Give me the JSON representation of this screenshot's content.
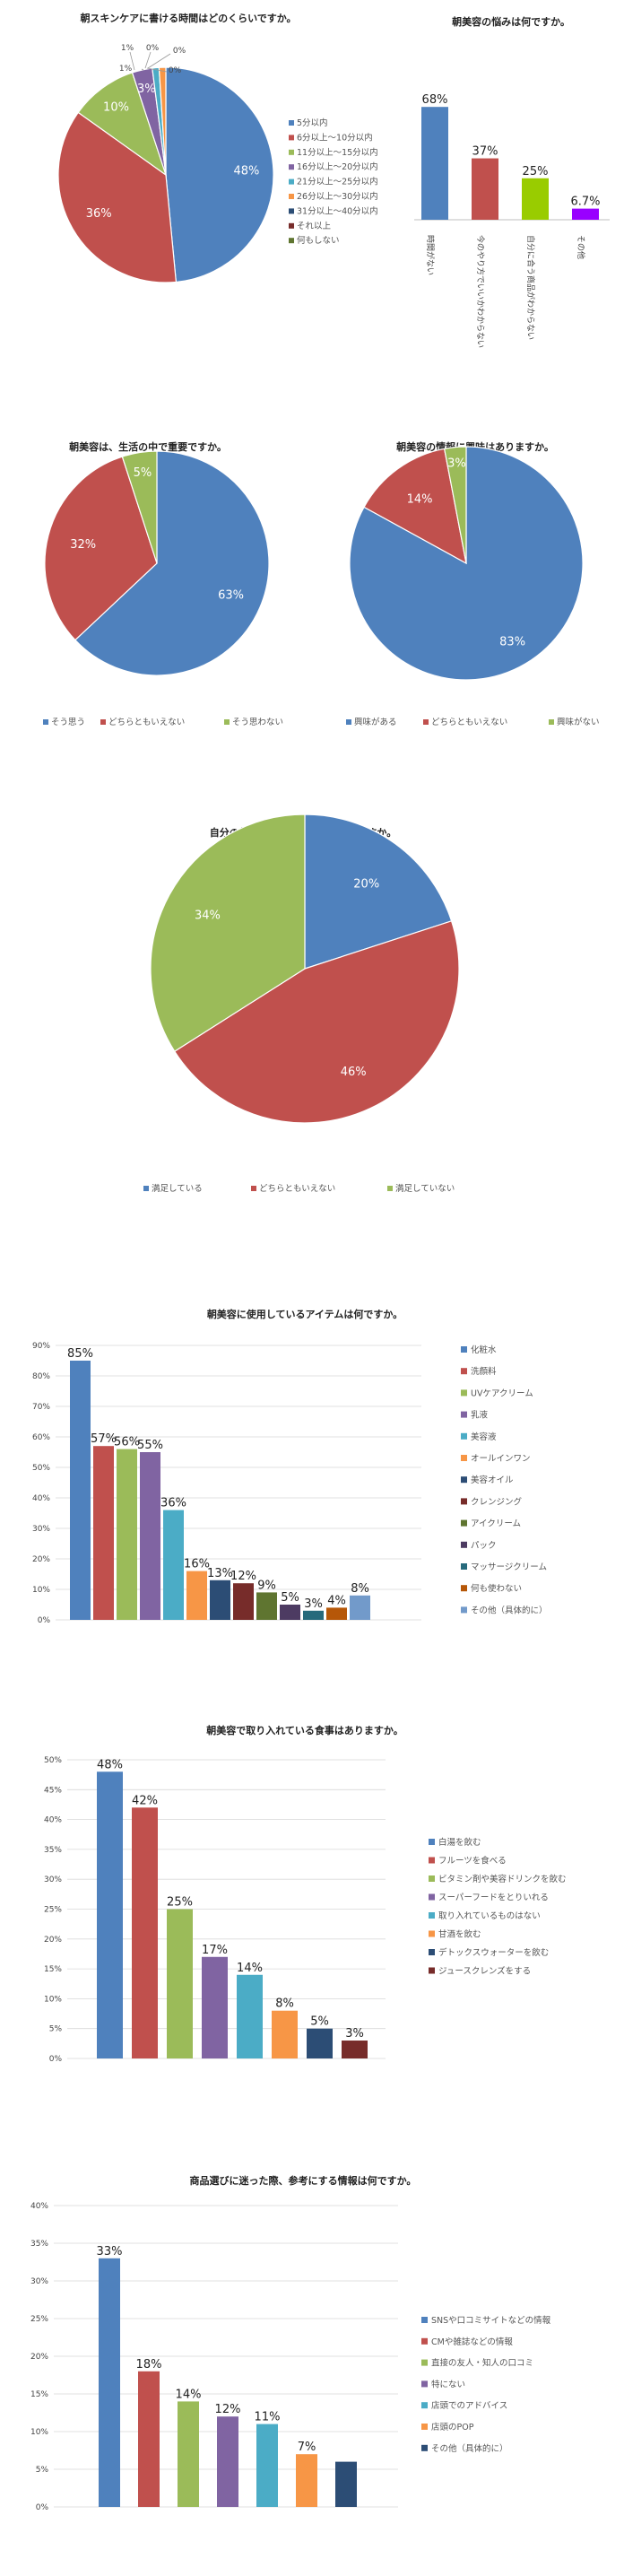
{
  "colors": {
    "blue": "#4f81bd",
    "red": "#c0504d",
    "green": "#9bbb59",
    "purple": "#8064a2",
    "teal": "#4bacc6",
    "orange": "#f79646",
    "navy": "#2c4d75",
    "maroon": "#772c2a",
    "olive": "#5f7530",
    "violet": "#4d3b62",
    "cyan": "#276a7c",
    "brown": "#b65708",
    "steel": "#729aca",
    "lime": "#99cc00",
    "magenta": "#9900ff"
  },
  "chart_data": [
    {
      "type": "pie",
      "title": "朝スキンケアに書ける時間はどのくらいですか。",
      "categories": [
        "5分以内",
        "6分以上～10分以内",
        "11分以上～15分以内",
        "16分以上～20分以内",
        "21分以上～25分以内",
        "26分以上～30分以内",
        "31分以上～40分以内",
        "それ以上",
        "何もしない"
      ],
      "values": [
        48,
        36,
        10,
        3,
        1,
        1,
        0,
        0,
        0
      ],
      "labels": [
        "48%",
        "36%",
        "10%",
        "3%",
        "1%",
        "1%",
        "0%",
        "0%",
        "0%"
      ],
      "legend": "right"
    },
    {
      "type": "bar",
      "title": "朝美容の悩みは何ですか。",
      "categories": [
        "時間がない",
        "今のやり方でいいかわからない",
        "自分に合う商品がわからない",
        "その他"
      ],
      "values": [
        68,
        37,
        25,
        6.7
      ],
      "labels": [
        "68%",
        "37%",
        "25%",
        "6.7%"
      ],
      "legend": "none"
    },
    {
      "type": "pie",
      "title": "朝美容は、生活の中で重要ですか。",
      "categories": [
        "そう思う",
        "どちらともいえない",
        "そう思わない"
      ],
      "values": [
        63,
        32,
        5
      ],
      "labels": [
        "63%",
        "32%",
        "5%"
      ],
      "legend": "bottom"
    },
    {
      "type": "pie",
      "title": "朝美容の情報に興味はありますか。",
      "categories": [
        "興味がある",
        "どちらともいえない",
        "興味がない"
      ],
      "values": [
        83,
        14,
        3
      ],
      "labels": [
        "83%",
        "14%",
        "3%"
      ],
      "legend": "bottom"
    },
    {
      "type": "pie",
      "title": "自分の朝美容の習慣に満足していますか。",
      "categories": [
        "満足している",
        "どちらともいえない",
        "満足していない"
      ],
      "values": [
        20,
        46,
        34
      ],
      "labels": [
        "20%",
        "46%",
        "34%"
      ],
      "legend": "bottom"
    },
    {
      "type": "bar",
      "title": "朝美容に使用しているアイテムは何ですか。",
      "categories": [
        "化粧水",
        "洗顔料",
        "UVケアクリーム",
        "乳液",
        "美容液",
        "オールインワン",
        "美容オイル",
        "クレンジング",
        "アイクリーム",
        "パック",
        "マッサージクリーム",
        "何も使わない",
        "その他（具体的に）"
      ],
      "values": [
        85,
        57,
        56,
        55,
        36,
        16,
        13,
        12,
        9,
        5,
        3,
        4,
        8
      ],
      "labels": [
        "85%",
        "57%",
        "56%",
        "55%",
        "36%",
        "16%",
        "13%",
        "12%",
        "9%",
        "5%",
        "3%",
        "4%",
        "8%"
      ],
      "yticks": [
        "0%",
        "10%",
        "20%",
        "30%",
        "40%",
        "50%",
        "60%",
        "70%",
        "80%",
        "90%"
      ],
      "ylim": [
        0,
        90
      ],
      "legend": "right"
    },
    {
      "type": "bar",
      "title": "朝美容で取り入れている食事はありますか。",
      "categories": [
        "白湯を飲む",
        "フルーツを食べる",
        "ビタミン剤や美容ドリンクを飲む",
        "スーパーフードをとりいれる",
        "取り入れているものはない",
        "甘酒を飲む",
        "デトックスウォーターを飲む",
        "ジュースクレンズをする"
      ],
      "values": [
        48,
        42,
        25,
        17,
        14,
        8,
        5,
        3
      ],
      "labels": [
        "48%",
        "42%",
        "25%",
        "17%",
        "14%",
        "8%",
        "5%",
        "3%"
      ],
      "yticks": [
        "0%",
        "5%",
        "10%",
        "15%",
        "20%",
        "25%",
        "30%",
        "35%",
        "40%",
        "45%",
        "50%"
      ],
      "ylim": [
        0,
        50
      ],
      "legend": "right"
    },
    {
      "type": "bar",
      "title": "商品選びに迷った際、参考にする情報は何ですか。",
      "categories": [
        "SNSや口コミサイトなどの情報",
        "CMや雑誌などの情報",
        "直接の友人・知人の口コミ",
        "特にない",
        "店頭でのアドバイス",
        "店頭のPOP",
        "その他（具体的に）"
      ],
      "values": [
        33,
        18,
        14,
        12,
        11,
        7,
        6
      ],
      "labels": [
        "33%",
        "18%",
        "14%",
        "12%",
        "11%",
        "7%",
        ""
      ],
      "yticks": [
        "0%",
        "5%",
        "10%",
        "15%",
        "20%",
        "25%",
        "30%",
        "35%",
        "40%"
      ],
      "ylim": [
        0,
        40
      ],
      "legend": "right"
    }
  ]
}
